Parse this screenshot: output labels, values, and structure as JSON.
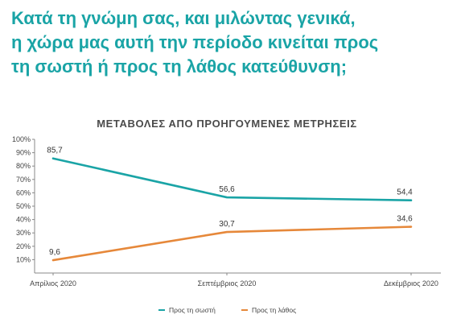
{
  "question": {
    "lines": [
      "Κατά τη γνώμη σας, και μιλώντας γενικά,",
      "η χώρα μας αυτή την περίοδο κινείται προς",
      "τη σωστή ή προς τη λάθος κατεύθυνση;"
    ]
  },
  "chart_data": {
    "type": "line",
    "title": "ΜΕΤΑΒΟΛΕΣ ΑΠΟ ΠΡΟΗΓΟΥΜΕΝΕΣ ΜΕΤΡΗΣΕΙΣ",
    "categories": [
      "Απρίλιος 2020",
      "Σεπτέμβριος 2020",
      "Δεκέμβριος 2020"
    ],
    "y_ticks": [
      "10%",
      "20%",
      "30%",
      "40%",
      "50%",
      "60%",
      "70%",
      "80%",
      "90%",
      "100%"
    ],
    "ylim": [
      0,
      100
    ],
    "grid": false,
    "legend_position": "bottom",
    "series": [
      {
        "name": "Προς τη σωστή",
        "values": [
          85.7,
          56.6,
          54.4
        ],
        "labels": [
          "85,7",
          "56,6",
          "54,4"
        ],
        "color": "#1aa4a6"
      },
      {
        "name": "Προς τη λάθος",
        "values": [
          9.6,
          30.7,
          34.6
        ],
        "labels": [
          "9,6",
          "30,7",
          "34,6"
        ],
        "color": "#e6883a"
      }
    ]
  }
}
